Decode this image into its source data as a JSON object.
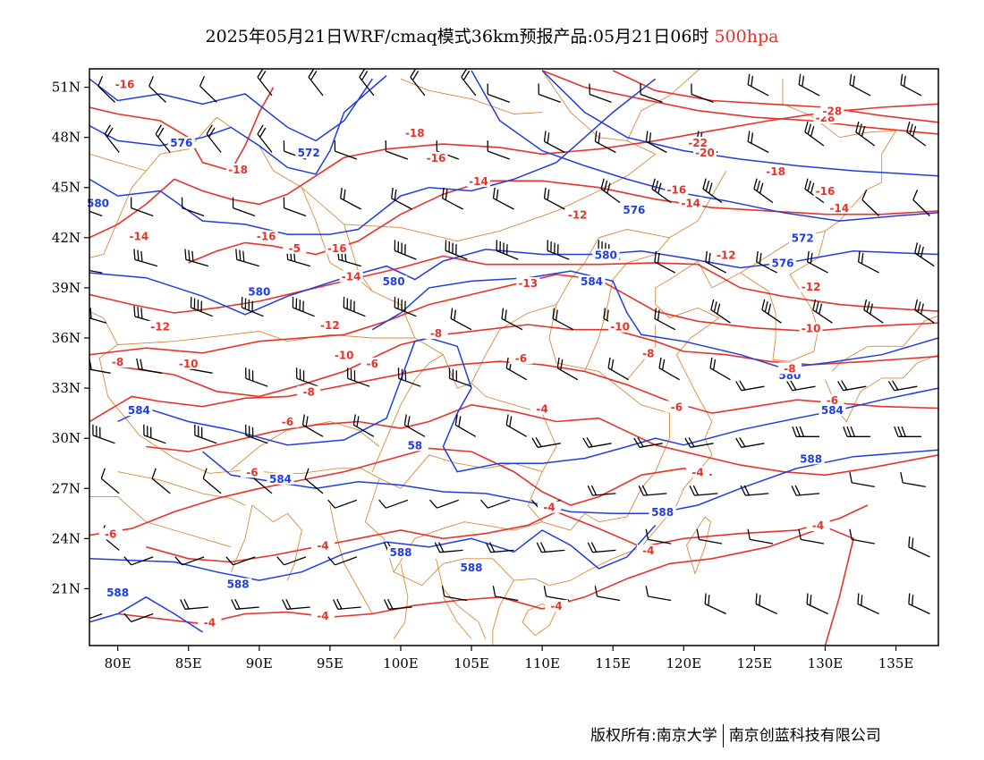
{
  "title": {
    "main": "2025年05月21日WRF/cmaq模式36km预报产品:05月21日06时",
    "level": "500hpa"
  },
  "colors": {
    "height_contour": "#1f3de0",
    "temperature_contour": "#e8332a",
    "boundary": "#d98a3a",
    "wind_barb": "#000000"
  },
  "axes": {
    "x_ticks": [
      "80E",
      "85E",
      "90E",
      "95E",
      "100E",
      "105E",
      "110E",
      "115E",
      "120E",
      "125E",
      "130E",
      "135E"
    ],
    "y_ticks": [
      "51N",
      "48N",
      "45N",
      "42N",
      "39N",
      "36N",
      "33N",
      "30N",
      "27N",
      "24N",
      "21N"
    ]
  },
  "height_labels": [
    {
      "text": "576",
      "lon": 84.5,
      "lat": 47.5
    },
    {
      "text": "572",
      "lon": 93.5,
      "lat": 46.9
    },
    {
      "text": "580",
      "lon": 78.6,
      "lat": 43.9
    },
    {
      "text": "576",
      "lon": 116.5,
      "lat": 43.5
    },
    {
      "text": "572",
      "lon": 128.4,
      "lat": 41.8
    },
    {
      "text": "580",
      "lon": 114.5,
      "lat": 40.8
    },
    {
      "text": "576",
      "lon": 127.0,
      "lat": 40.3
    },
    {
      "text": "580",
      "lon": 90.0,
      "lat": 38.6
    },
    {
      "text": "580",
      "lon": 99.5,
      "lat": 39.2
    },
    {
      "text": "584",
      "lon": 113.5,
      "lat": 39.2
    },
    {
      "text": "580",
      "lon": 127.5,
      "lat": 33.6
    },
    {
      "text": "584",
      "lon": 130.5,
      "lat": 31.5
    },
    {
      "text": "584",
      "lon": 81.5,
      "lat": 31.5
    },
    {
      "text": "588",
      "lon": 129.0,
      "lat": 28.6
    },
    {
      "text": "584",
      "lon": 91.5,
      "lat": 27.4
    },
    {
      "text": "588",
      "lon": 118.5,
      "lat": 25.4
    },
    {
      "text": "588",
      "lon": 100.0,
      "lat": 23.0
    },
    {
      "text": "588",
      "lon": 105.0,
      "lat": 22.1
    },
    {
      "text": "588",
      "lon": 88.5,
      "lat": 21.1
    },
    {
      "text": "588",
      "lon": 80.0,
      "lat": 20.6
    },
    {
      "text": "58",
      "lon": 101.0,
      "lat": 29.4
    }
  ],
  "temperature_labels": [
    {
      "text": "-16",
      "lon": 80.5,
      "lat": 51.0
    },
    {
      "text": "-18",
      "lon": 101.0,
      "lat": 48.1
    },
    {
      "text": "-16",
      "lon": 102.5,
      "lat": 46.6
    },
    {
      "text": "-18",
      "lon": 88.5,
      "lat": 45.9
    },
    {
      "text": "-14",
      "lon": 105.5,
      "lat": 45.2
    },
    {
      "text": "-16",
      "lon": 119.5,
      "lat": 44.7
    },
    {
      "text": "-14",
      "lon": 120.5,
      "lat": 43.9
    },
    {
      "text": "-12",
      "lon": 112.5,
      "lat": 43.2
    },
    {
      "text": "-14",
      "lon": 81.5,
      "lat": 41.9
    },
    {
      "text": "-16",
      "lon": 90.5,
      "lat": 41.9
    },
    {
      "text": "-16",
      "lon": 95.5,
      "lat": 41.2
    },
    {
      "text": "-5",
      "lon": 92.5,
      "lat": 41.2
    },
    {
      "text": "-14",
      "lon": 96.5,
      "lat": 39.5
    },
    {
      "text": "-12",
      "lon": 123.0,
      "lat": 40.8
    },
    {
      "text": "-13",
      "lon": 109.0,
      "lat": 39.1
    },
    {
      "text": "-12",
      "lon": 129.0,
      "lat": 38.9
    },
    {
      "text": "-12",
      "lon": 83.0,
      "lat": 36.5
    },
    {
      "text": "-12",
      "lon": 95.0,
      "lat": 36.6
    },
    {
      "text": "-10",
      "lon": 115.5,
      "lat": 36.5
    },
    {
      "text": "-10",
      "lon": 129.0,
      "lat": 36.4
    },
    {
      "text": "-8",
      "lon": 102.5,
      "lat": 36.1
    },
    {
      "text": "-10",
      "lon": 96.0,
      "lat": 34.8
    },
    {
      "text": "-10",
      "lon": 85.0,
      "lat": 34.3
    },
    {
      "text": "-8",
      "lon": 80.0,
      "lat": 34.4
    },
    {
      "text": "-8",
      "lon": 117.5,
      "lat": 34.9
    },
    {
      "text": "-6",
      "lon": 98.0,
      "lat": 34.3
    },
    {
      "text": "-6",
      "lon": 108.5,
      "lat": 34.6
    },
    {
      "text": "-8",
      "lon": 127.5,
      "lat": 34.0
    },
    {
      "text": "-8",
      "lon": 93.5,
      "lat": 32.6
    },
    {
      "text": "-6",
      "lon": 130.5,
      "lat": 32.1
    },
    {
      "text": "-4",
      "lon": 110.0,
      "lat": 31.6
    },
    {
      "text": "-6",
      "lon": 119.5,
      "lat": 31.7
    },
    {
      "text": "-6",
      "lon": 92.0,
      "lat": 30.8
    },
    {
      "text": "-6",
      "lon": 89.5,
      "lat": 27.8
    },
    {
      "text": "-4",
      "lon": 121.0,
      "lat": 27.8
    },
    {
      "text": "-4",
      "lon": 110.5,
      "lat": 25.7
    },
    {
      "text": "-6",
      "lon": 79.5,
      "lat": 24.1
    },
    {
      "text": "-4",
      "lon": 129.5,
      "lat": 24.6
    },
    {
      "text": "-4",
      "lon": 94.5,
      "lat": 23.4
    },
    {
      "text": "-4",
      "lon": 117.5,
      "lat": 23.1
    },
    {
      "text": "-4",
      "lon": 111.0,
      "lat": 19.8
    },
    {
      "text": "-4",
      "lon": 94.5,
      "lat": 19.2
    },
    {
      "text": "-4",
      "lon": 86.5,
      "lat": 18.8
    },
    {
      "text": "-20",
      "lon": 121.5,
      "lat": 46.9
    },
    {
      "text": "-22",
      "lon": 121.0,
      "lat": 47.5
    },
    {
      "text": "-18",
      "lon": 126.5,
      "lat": 45.8
    },
    {
      "text": "-16",
      "lon": 130.0,
      "lat": 44.6
    },
    {
      "text": "-14",
      "lon": 131.0,
      "lat": 43.6
    },
    {
      "text": "-28",
      "lon": 130.0,
      "lat": 49.0
    },
    {
      "text": "-28",
      "lon": 130.5,
      "lat": 49.4
    }
  ],
  "credit": {
    "left": "版权所有:南京大学",
    "right": "南京创蓝科技有限公司"
  }
}
